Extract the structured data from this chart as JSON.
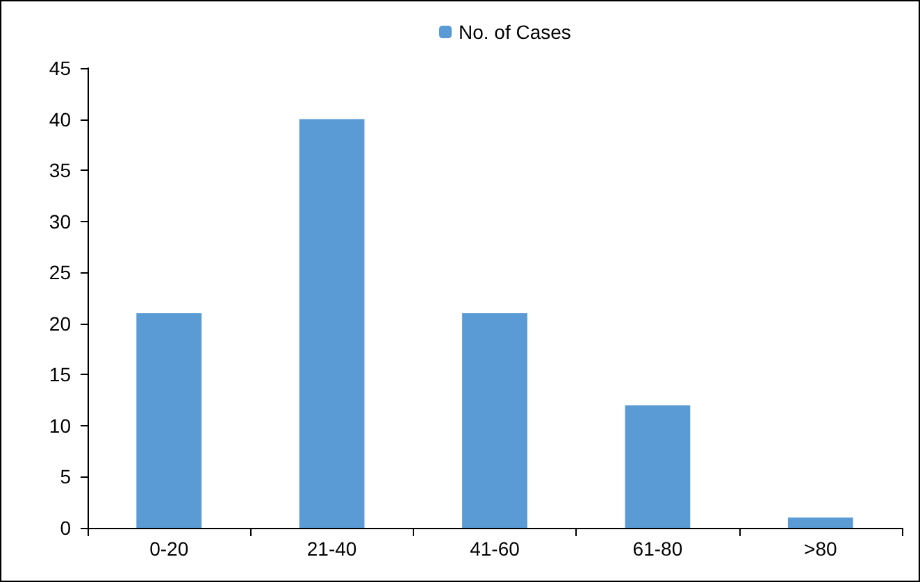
{
  "chart_data": {
    "type": "bar",
    "categories": [
      "0-20",
      "21-40",
      "41-60",
      "61-80",
      ">80"
    ],
    "series": [
      {
        "name": "No. of Cases",
        "color": "#5b9bd5",
        "values": [
          21,
          40,
          21,
          12,
          1
        ]
      }
    ],
    "ylim": [
      0,
      45
    ],
    "yticks": [
      0,
      5,
      10,
      15,
      20,
      25,
      30,
      35,
      40,
      45
    ],
    "grid": false,
    "legend": "top"
  }
}
